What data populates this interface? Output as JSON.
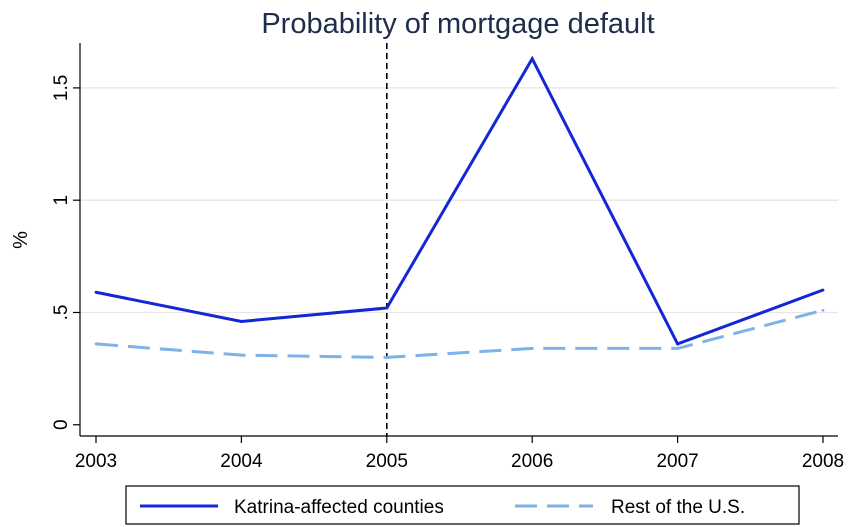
{
  "chart_data": {
    "type": "line",
    "title": "Probability of mortgage default",
    "xlabel": "",
    "ylabel": "%",
    "x": [
      2003,
      2004,
      2005,
      2006,
      2007,
      2008
    ],
    "x_tick_labels": [
      "2003",
      "2004",
      "2005",
      "2006",
      "2007",
      "2008"
    ],
    "y_ticks": [
      0,
      0.5,
      1,
      1.5
    ],
    "y_tick_labels": [
      "0",
      ".5",
      "1",
      "1.5"
    ],
    "ylim": [
      -0.05,
      1.7
    ],
    "xlim": [
      2003,
      2008
    ],
    "grid": "horizontal",
    "reference_line": {
      "x": 2005,
      "style": "dashed",
      "color": "#000000"
    },
    "series": [
      {
        "name": "Katrina-affected counties",
        "values": [
          0.59,
          0.46,
          0.52,
          1.63,
          0.36,
          0.6
        ],
        "color": "#1327d6",
        "style": "solid"
      },
      {
        "name": "Rest of the U.S.",
        "values": [
          0.36,
          0.31,
          0.3,
          0.34,
          0.34,
          0.51
        ],
        "color": "#7fb2ea",
        "style": "dashed"
      }
    ],
    "legend_placement": "bottom"
  }
}
